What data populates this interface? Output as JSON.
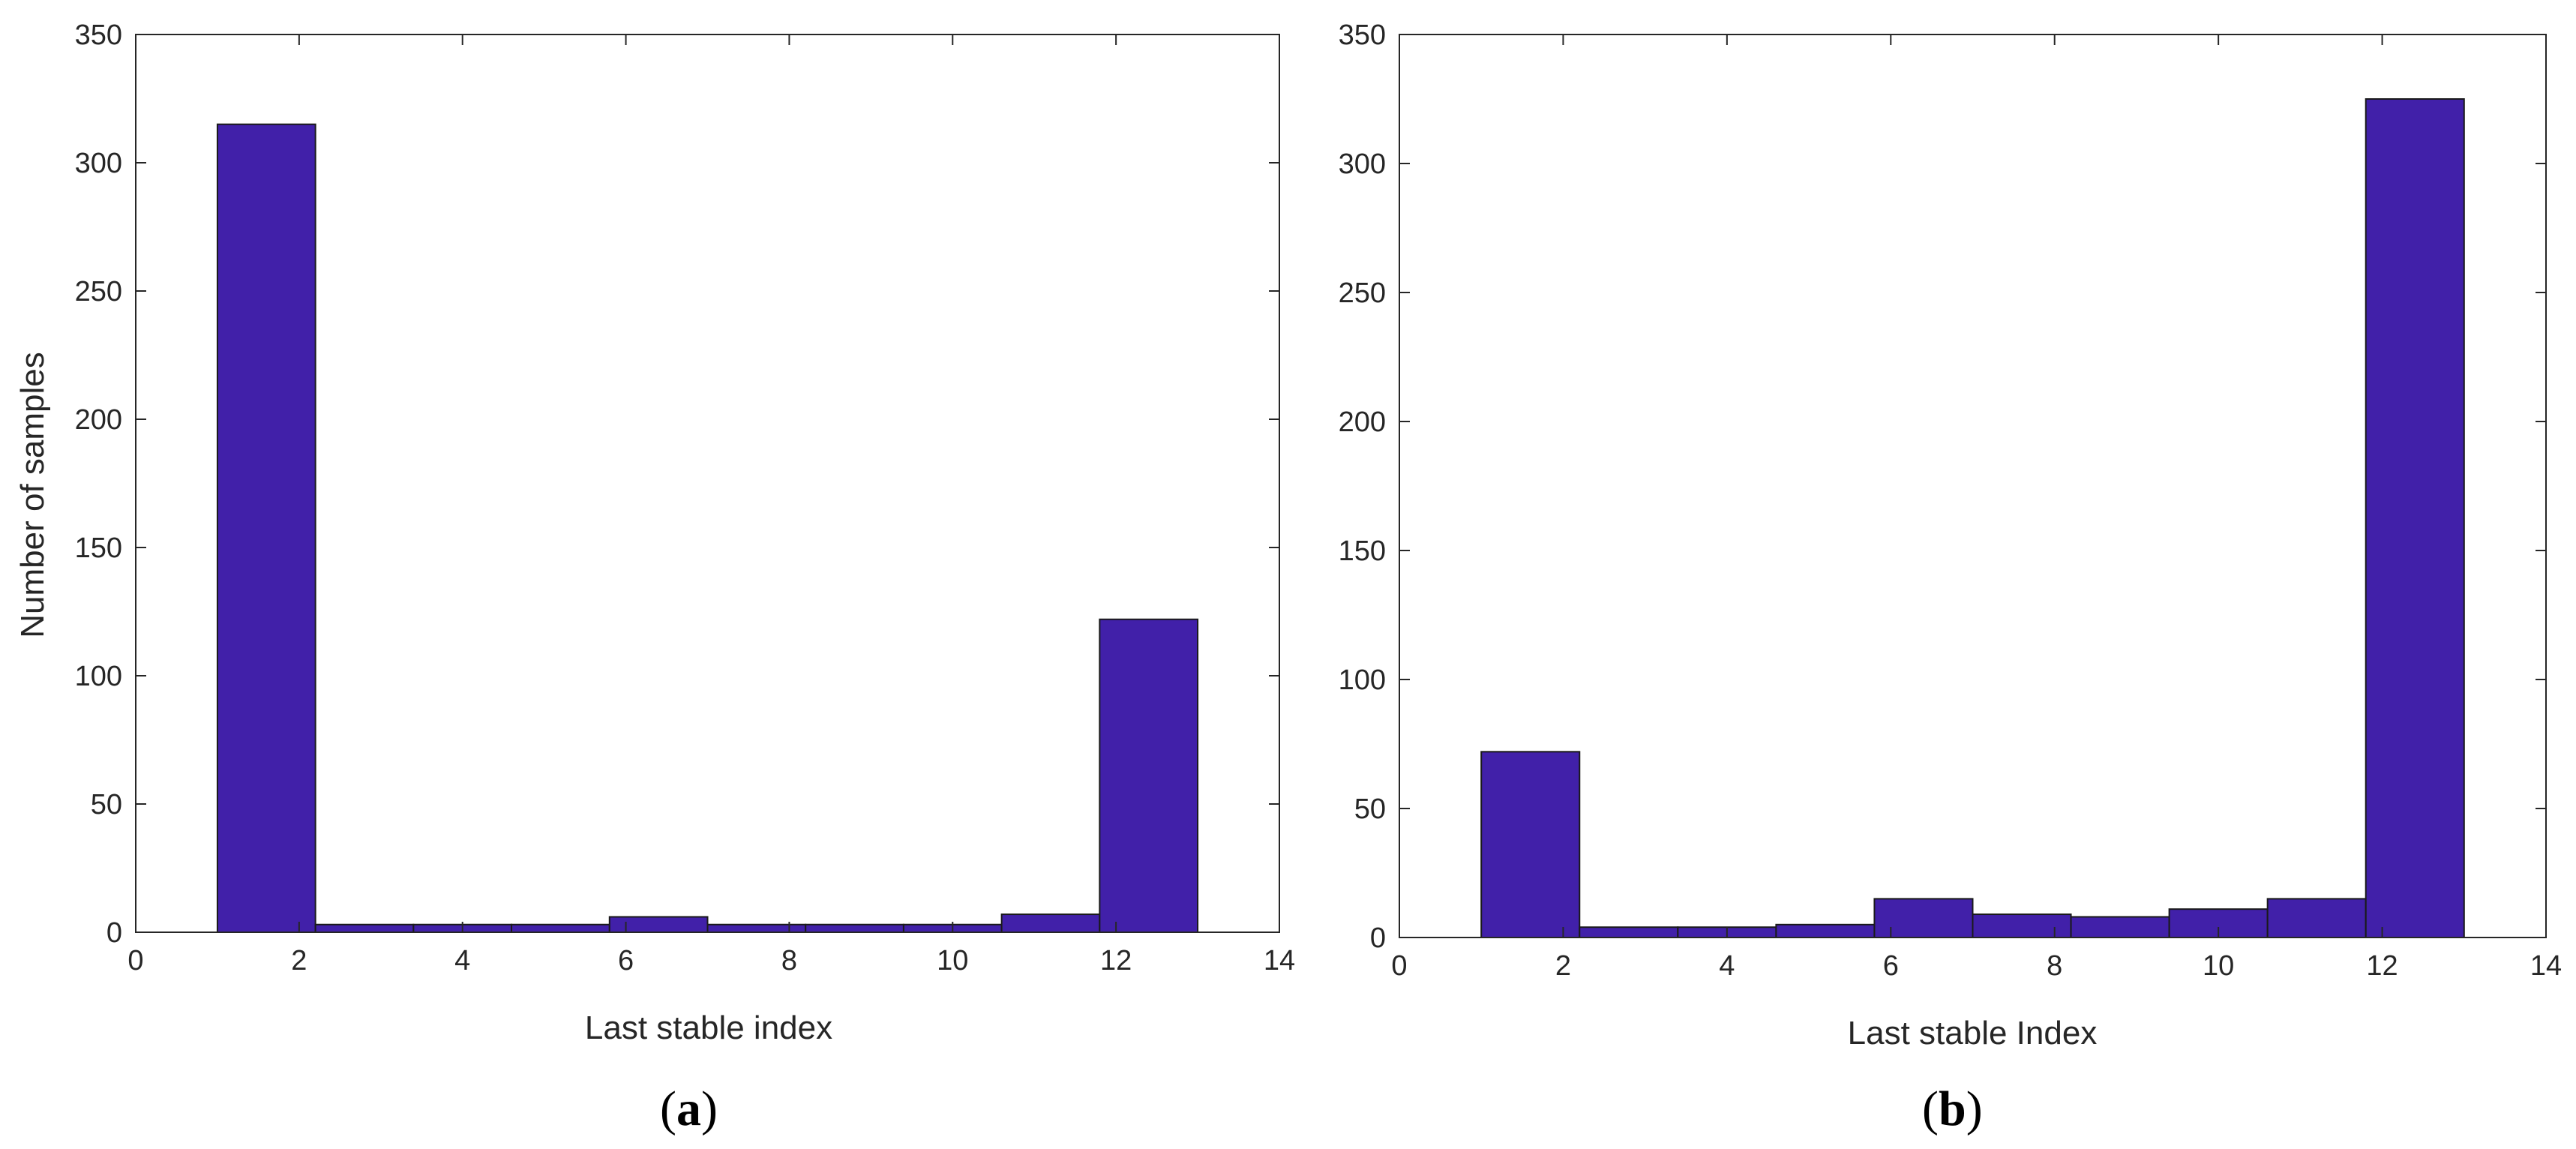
{
  "chart_data": [
    {
      "type": "bar",
      "panel_label": "a",
      "xlabel": "Last stable index",
      "ylabel": "Number of samples",
      "xlim": [
        0,
        14
      ],
      "ylim": [
        0,
        350
      ],
      "xticks": [
        0,
        2,
        4,
        6,
        8,
        10,
        12,
        14
      ],
      "yticks": [
        0,
        50,
        100,
        150,
        200,
        250,
        300,
        350
      ],
      "bin_edges": [
        1,
        2.2,
        3.4,
        4.6,
        5.8,
        7,
        8.2,
        9.4,
        10.6,
        11.8,
        13
      ],
      "values": [
        315,
        3,
        3,
        3,
        6,
        3,
        3,
        3,
        7,
        122
      ],
      "bar_color": "#4120A9",
      "grid": false
    },
    {
      "type": "bar",
      "panel_label": "b",
      "xlabel": "Last stable Index",
      "ylabel": "",
      "xlim": [
        0,
        14
      ],
      "ylim": [
        0,
        350
      ],
      "xticks": [
        0,
        2,
        4,
        6,
        8,
        10,
        12,
        14
      ],
      "yticks": [
        0,
        50,
        100,
        150,
        200,
        250,
        300,
        350
      ],
      "bin_edges": [
        1,
        2.2,
        3.4,
        4.6,
        5.8,
        7,
        8.2,
        9.4,
        10.6,
        11.8,
        13
      ],
      "values": [
        72,
        4,
        4,
        5,
        15,
        9,
        8,
        11,
        15,
        325
      ],
      "bar_color": "#4120A9",
      "grid": false
    }
  ]
}
